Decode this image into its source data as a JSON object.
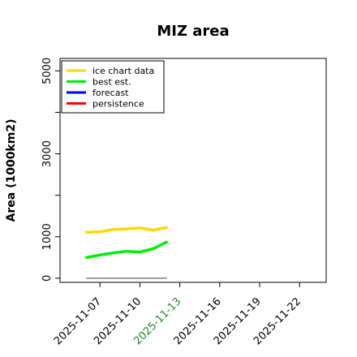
{
  "chart_data": {
    "type": "line",
    "title": "MIZ area",
    "ylabel": "Area (1000km2)",
    "xlabel": "",
    "ylim": [
      -100,
      5300
    ],
    "xlim": [
      "2025-11-04",
      "2025-11-24"
    ],
    "yticks": [
      0,
      1000,
      3000,
      5000
    ],
    "yticks_minor": [
      2000,
      4000
    ],
    "xticks": [
      {
        "label": "2025-11-07",
        "color": "#000000"
      },
      {
        "label": "2025-11-10",
        "color": "#000000"
      },
      {
        "label": "2025-11-13",
        "color": "#228b22"
      },
      {
        "label": "2025-11-16",
        "color": "#000000"
      },
      {
        "label": "2025-11-19",
        "color": "#000000"
      },
      {
        "label": "2025-11-22",
        "color": "#000000"
      }
    ],
    "legend_position": "top-left",
    "series": [
      {
        "name": "ice chart data",
        "color": "#ffd700",
        "points": [
          [
            "2025-11-06",
            1110
          ],
          [
            "2025-11-07",
            1120
          ],
          [
            "2025-11-08",
            1175
          ],
          [
            "2025-11-09",
            1190
          ],
          [
            "2025-11-10",
            1210
          ],
          [
            "2025-11-11",
            1160
          ],
          [
            "2025-11-12",
            1220
          ]
        ]
      },
      {
        "name": "best est.",
        "color": "#00ee00",
        "points": [
          [
            "2025-11-06",
            500
          ],
          [
            "2025-11-07",
            560
          ],
          [
            "2025-11-08",
            610
          ],
          [
            "2025-11-09",
            650
          ],
          [
            "2025-11-10",
            630
          ],
          [
            "2025-11-11",
            710
          ],
          [
            "2025-11-12",
            870
          ]
        ]
      },
      {
        "name": "forecast",
        "color": "#0000ff",
        "points": []
      },
      {
        "name": "persistence",
        "color": "#ff0000",
        "points": []
      },
      {
        "name": "",
        "color": "#808080",
        "points": [
          [
            "2025-11-06",
            0
          ],
          [
            "2025-11-12",
            0
          ]
        ]
      }
    ]
  }
}
